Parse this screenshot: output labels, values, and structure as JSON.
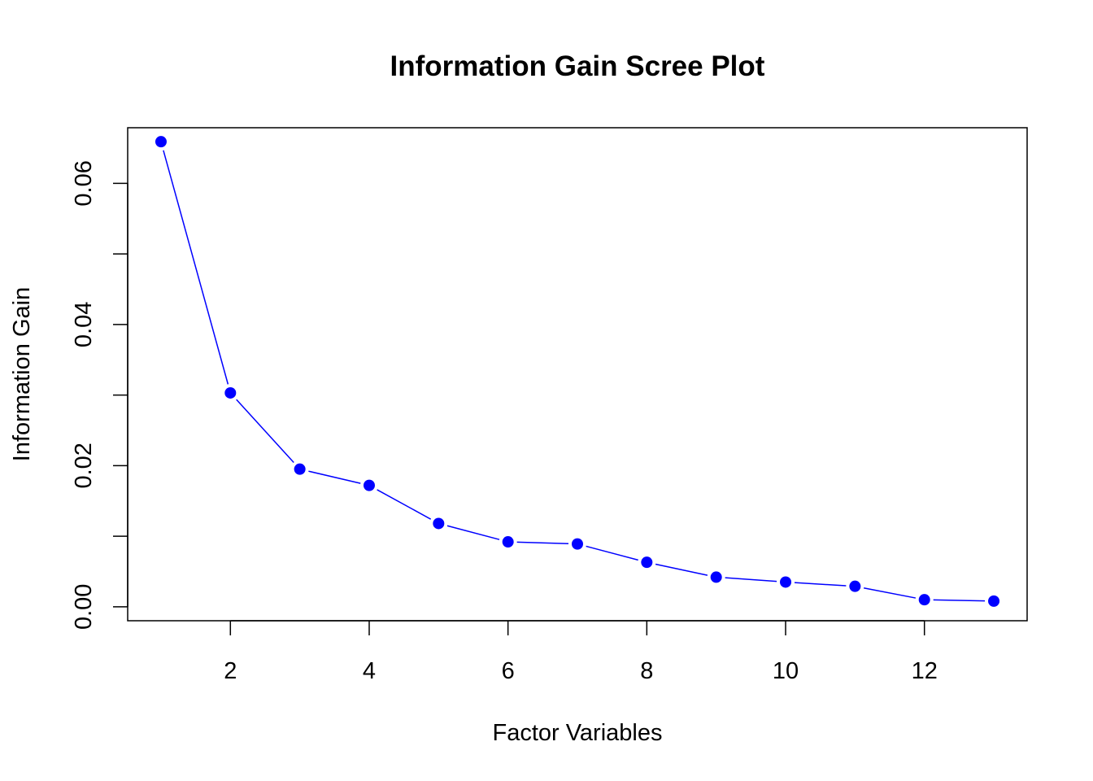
{
  "chart_data": {
    "type": "line",
    "title": "Information Gain Scree Plot",
    "xlabel": "Factor Variables",
    "ylabel": "Information Gain",
    "x": [
      1,
      2,
      3,
      4,
      5,
      6,
      7,
      8,
      9,
      10,
      11,
      12,
      13
    ],
    "series": [
      {
        "name": "Information Gain",
        "values": [
          0.0659,
          0.0303,
          0.0195,
          0.0172,
          0.0118,
          0.0092,
          0.0089,
          0.0063,
          0.0042,
          0.0035,
          0.0029,
          0.001,
          0.0008
        ]
      }
    ],
    "xticks": [
      2,
      4,
      6,
      8,
      10,
      12
    ],
    "xtick_labels": [
      "2",
      "4",
      "6",
      "8",
      "10",
      "12"
    ],
    "yticks": [
      0.0,
      0.01,
      0.02,
      0.03,
      0.04,
      0.05,
      0.06
    ],
    "ytick_labels": [
      "0.00",
      "",
      "0.02",
      "",
      "0.04",
      "",
      "0.06"
    ],
    "xlim": [
      0.52,
      13.48
    ],
    "ylim": [
      -0.00198,
      0.06788
    ],
    "color": "#0000FF",
    "axis_color": "#000000",
    "grid": false,
    "marker": "filled-circle"
  }
}
